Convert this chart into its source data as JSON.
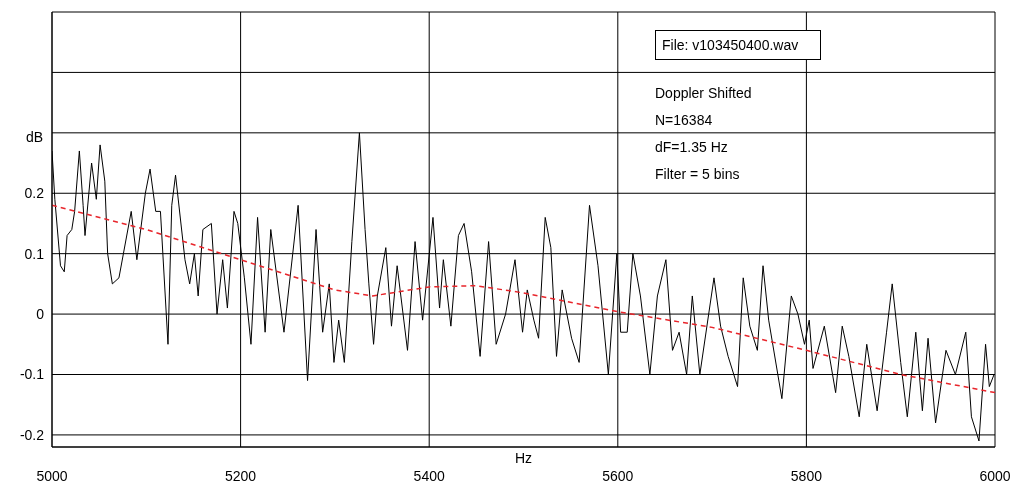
{
  "chart_data": {
    "type": "line",
    "xlabel": "Hz",
    "ylabel": "dB",
    "annotations": [
      "File: v103450400.wav",
      "Doppler Shifted",
      "N=16384",
      "dF=1.35 Hz",
      "Filter = 5 bins"
    ],
    "xlim": [
      5000,
      6000
    ],
    "xticks": [
      5000,
      5200,
      5400,
      5600,
      5800,
      6000
    ],
    "ylim": [
      -0.22,
      0.5
    ],
    "yticks": [
      -0.2,
      -0.1,
      0,
      0.1,
      0.2,
      {
        "value": 0.3,
        "label": null
      },
      {
        "value": 0.4,
        "label": null
      },
      {
        "value": 0.5,
        "label": null
      }
    ],
    "grid": true,
    "marker": "none",
    "series": [
      {
        "color": "#000000",
        "line_style": "solid",
        "x": [
          5000,
          5003,
          5009,
          5013,
          5016,
          5021,
          5024,
          5029,
          5033,
          5035,
          5042,
          5047,
          5051,
          5056,
          5059,
          5064,
          5071,
          5084,
          5090,
          5099,
          5104,
          5110,
          5115,
          5123,
          5127,
          5131,
          5141,
          5146,
          5151,
          5155,
          5160,
          5169,
          5175,
          5181,
          5186,
          5193,
          5197,
          5204,
          5211,
          5218,
          5226,
          5232,
          5246,
          5261,
          5271,
          5280,
          5287,
          5294,
          5299,
          5304,
          5310,
          5318,
          5326,
          5332,
          5336,
          5341,
          5345,
          5354,
          5360,
          5366,
          5377,
          5385,
          5393,
          5404,
          5411,
          5415,
          5423,
          5431,
          5437,
          5445,
          5454,
          5463,
          5471,
          5481,
          5491,
          5499,
          5504,
          5511,
          5516,
          5523,
          5529,
          5535,
          5541,
          5551,
          5559,
          5570,
          5579,
          5590,
          5599,
          5603,
          5610,
          5616,
          5624,
          5634,
          5642,
          5651,
          5658,
          5665,
          5673,
          5679,
          5687,
          5702,
          5709,
          5717,
          5727,
          5733,
          5740,
          5748,
          5754,
          5760,
          5774,
          5784,
          5791,
          5798,
          5803,
          5807,
          5819,
          5831,
          5838,
          5845,
          5856,
          5864,
          5875,
          5885,
          5891,
          5900,
          5907,
          5916,
          5923,
          5929,
          5937,
          5948,
          5958,
          5969,
          5975,
          5983,
          5990,
          5994,
          5999
        ],
        "values": [
          0.27,
          0.19,
          0.08,
          0.07,
          0.13,
          0.14,
          0.17,
          0.27,
          0.18,
          0.13,
          0.25,
          0.19,
          0.28,
          0.22,
          0.1,
          0.05,
          0.06,
          0.17,
          0.09,
          0.2,
          0.24,
          0.17,
          0.17,
          -0.05,
          0.18,
          0.23,
          0.09,
          0.05,
          0.1,
          0.03,
          0.14,
          0.15,
          0,
          0.09,
          0.01,
          0.17,
          0.15,
          0.06,
          -0.05,
          0.16,
          -0.03,
          0.14,
          -0.03,
          0.18,
          -0.11,
          0.14,
          -0.03,
          0.05,
          -0.08,
          -0.01,
          -0.08,
          0.12,
          0.3,
          0.14,
          0.05,
          -0.05,
          0.03,
          0.11,
          -0.02,
          0.08,
          -0.06,
          0.12,
          -0.01,
          0.16,
          0.01,
          0.09,
          -0.02,
          0.13,
          0.15,
          0.07,
          -0.07,
          0.12,
          -0.05,
          0,
          0.09,
          -0.03,
          0.04,
          -0.01,
          -0.04,
          0.16,
          0.11,
          -0.07,
          0.04,
          -0.04,
          -0.08,
          0.18,
          0.08,
          -0.1,
          0.1,
          -0.03,
          -0.03,
          0.1,
          0.03,
          -0.1,
          0.03,
          0.09,
          -0.06,
          -0.03,
          -0.1,
          0.03,
          -0.1,
          0.06,
          -0.02,
          -0.07,
          -0.12,
          0.06,
          -0.02,
          -0.06,
          0.08,
          -0.01,
          -0.14,
          0.03,
          0,
          -0.05,
          -0.01,
          -0.09,
          -0.02,
          -0.13,
          -0.02,
          -0.07,
          -0.17,
          -0.05,
          -0.16,
          -0.03,
          0.05,
          -0.08,
          -0.17,
          -0.03,
          -0.16,
          -0.04,
          -0.18,
          -0.06,
          -0.1,
          -0.03,
          -0.17,
          -0.21,
          -0.05,
          -0.12,
          -0.1
        ]
      },
      {
        "color": "#e8252b",
        "line_style": "dashed",
        "x": [
          5000,
          5100,
          5200,
          5300,
          5340,
          5400,
          5450,
          5500,
          5600,
          5700,
          5800,
          5900,
          6000
        ],
        "values": [
          0.18,
          0.14,
          0.09,
          0.04,
          0.03,
          0.045,
          0.047,
          0.035,
          0.004,
          -0.022,
          -0.06,
          -0.1,
          -0.13
        ]
      }
    ]
  }
}
